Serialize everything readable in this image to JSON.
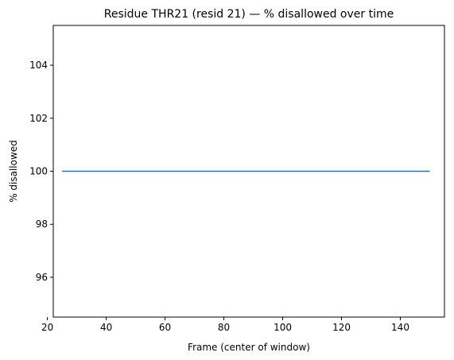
{
  "chart_data": {
    "type": "line",
    "title": "Residue THR21 (resid 21) — % disallowed over time",
    "xlabel": "Frame (center of window)",
    "ylabel": "% disallowed",
    "xlim": [
      22,
      155
    ],
    "ylim": [
      94.5,
      105.5
    ],
    "x_ticks": [
      20,
      40,
      60,
      80,
      100,
      120,
      140
    ],
    "y_ticks": [
      96,
      98,
      100,
      102,
      104
    ],
    "grid": false,
    "series": [
      {
        "color": "#1f77b4",
        "x": [
          25,
          150
        ],
        "y": [
          100,
          100
        ]
      }
    ]
  }
}
